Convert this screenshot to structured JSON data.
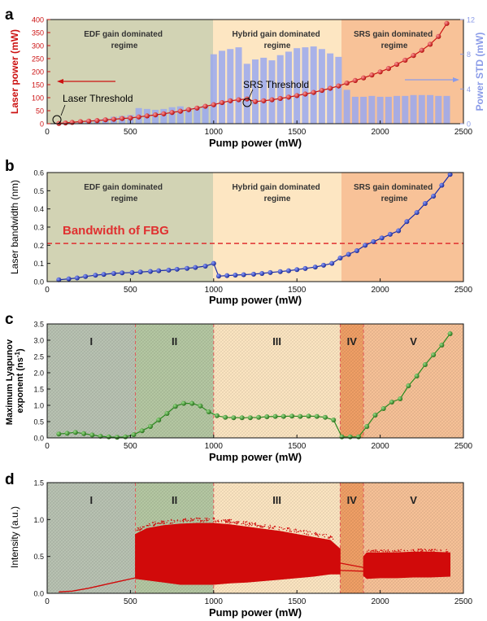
{
  "colors": {
    "edf_region": "#d2d3b4",
    "hybrid_region": "#fde6c2",
    "srs_region": "#f8c298",
    "r1": "#b9c3b3",
    "r2": "#b5c8a3",
    "r3": "#fde6c2",
    "r4": "#f1a066",
    "r5": "#f8c298",
    "laser_power": "#cc1111",
    "std_bars": "#9aa8ee",
    "bandwidth": "#1a2aa8",
    "lyapunov": "#2a8a1e",
    "intensity": "#d10a0a",
    "fbg_line": "#e03030",
    "boundary": "#e05a5a",
    "axis": "#111111",
    "right_axis": "#8a9be8"
  },
  "panels": {
    "a": {
      "letter": "a",
      "regimes": [
        {
          "label": [
            "EDF gain dominated",
            "regime"
          ]
        },
        {
          "label": [
            "Hybrid gain dominated",
            "regime"
          ]
        },
        {
          "label": [
            "SRS gain dominated",
            "regime"
          ]
        }
      ],
      "annotations": {
        "laser_threshold": "Laser Threshold",
        "srs_threshold": "SRS Threshold"
      }
    },
    "b": {
      "letter": "b",
      "regimes": [
        {
          "label": [
            "EDF gain dominated",
            "regime"
          ]
        },
        {
          "label": [
            "Hybrid gain dominated",
            "regime"
          ]
        },
        {
          "label": [
            "SRS gain dominated",
            "regime"
          ]
        }
      ],
      "fbg_label": "Bandwidth of FBG"
    },
    "c": {
      "letter": "c",
      "regions": [
        "I",
        "II",
        "III",
        "IV",
        "V"
      ]
    },
    "d": {
      "letter": "d",
      "regions": [
        "I",
        "II",
        "III",
        "IV",
        "V"
      ]
    }
  },
  "chart_data": [
    {
      "panel": "a",
      "type": "line",
      "xlabel": "Pump power (mW)",
      "ylabel": "Laser power (mW)",
      "y2label": "Power STD (mW)",
      "xlim": [
        0,
        2500
      ],
      "ylim": [
        0,
        400
      ],
      "y2lim": [
        0,
        12
      ],
      "xticks": [
        0,
        500,
        1000,
        1500,
        2000,
        2500
      ],
      "yticks": [
        0,
        50,
        100,
        150,
        200,
        250,
        300,
        350,
        400
      ],
      "y2ticks": [
        0,
        4,
        8,
        12
      ],
      "regime_bounds": [
        0,
        1000,
        1760,
        2500
      ],
      "series": [
        {
          "kind": "line",
          "x": [
            70,
            110,
            150,
            200,
            250,
            300,
            350,
            400,
            450,
            500,
            550,
            600,
            650,
            700,
            750,
            800,
            850,
            900,
            950,
            1000,
            1050,
            1100,
            1150,
            1200,
            1250,
            1300,
            1350,
            1400,
            1450,
            1500,
            1550,
            1600,
            1650,
            1700,
            1750,
            1800,
            1850,
            1900,
            1950,
            2000,
            2050,
            2100,
            2150,
            2200,
            2250,
            2300,
            2350,
            2400
          ],
          "values": [
            1,
            3,
            5,
            8,
            10,
            12,
            15,
            17,
            20,
            22,
            26,
            30,
            34,
            38,
            43,
            48,
            54,
            60,
            67,
            73,
            81,
            88,
            92,
            95,
            85,
            88,
            92,
            97,
            102,
            108,
            114,
            120,
            128,
            136,
            145,
            156,
            166,
            176,
            187,
            199,
            212,
            228,
            244,
            262,
            282,
            305,
            335,
            385
          ]
        },
        {
          "kind": "bar",
          "axis": "right",
          "x": [
            70,
            110,
            150,
            200,
            250,
            300,
            350,
            400,
            450,
            500,
            550,
            600,
            650,
            700,
            750,
            800,
            850,
            900,
            950,
            1000,
            1050,
            1100,
            1150,
            1200,
            1250,
            1300,
            1350,
            1400,
            1450,
            1500,
            1550,
            1600,
            1650,
            1700,
            1750,
            1800,
            1850,
            1900,
            1950,
            2000,
            2050,
            2100,
            2150,
            2200,
            2250,
            2300,
            2350,
            2400
          ],
          "values": [
            0.05,
            0.1,
            0.15,
            0.2,
            0.4,
            0.5,
            0.6,
            0.8,
            0.9,
            1.0,
            1.8,
            1.7,
            1.6,
            1.7,
            1.9,
            2.0,
            1.8,
            1.9,
            2.1,
            8.0,
            8.4,
            8.6,
            8.8,
            6.9,
            7.4,
            7.6,
            7.3,
            7.9,
            8.3,
            8.7,
            8.8,
            8.9,
            8.6,
            8.1,
            7.7,
            3.9,
            3.1,
            3.1,
            3.2,
            3.1,
            3.1,
            3.2,
            3.2,
            3.3,
            3.3,
            3.3,
            3.2,
            3.2
          ]
        }
      ]
    },
    {
      "panel": "b",
      "type": "line",
      "xlabel": "Pump power (mW)",
      "ylabel": "Laser bandwidth (nm)",
      "xlim": [
        0,
        2500
      ],
      "ylim": [
        0,
        0.6
      ],
      "xticks": [
        0,
        500,
        1000,
        1500,
        2000,
        2500
      ],
      "yticks": [
        0.0,
        0.1,
        0.2,
        0.3,
        0.4,
        0.5,
        0.6
      ],
      "fbg_value": 0.21,
      "regime_bounds": [
        0,
        1000,
        1760,
        2500
      ],
      "x": [
        70,
        130,
        180,
        230,
        290,
        340,
        400,
        450,
        510,
        560,
        620,
        670,
        730,
        780,
        840,
        890,
        950,
        1000,
        1030,
        1080,
        1130,
        1180,
        1240,
        1290,
        1340,
        1400,
        1450,
        1500,
        1550,
        1610,
        1660,
        1710,
        1760,
        1810,
        1860,
        1910,
        1960,
        2010,
        2060,
        2110,
        2160,
        2220,
        2270,
        2320,
        2370,
        2420
      ],
      "values": [
        0.01,
        0.015,
        0.02,
        0.028,
        0.035,
        0.04,
        0.045,
        0.048,
        0.05,
        0.053,
        0.056,
        0.06,
        0.063,
        0.068,
        0.073,
        0.078,
        0.085,
        0.1,
        0.03,
        0.033,
        0.036,
        0.038,
        0.041,
        0.045,
        0.05,
        0.055,
        0.06,
        0.066,
        0.072,
        0.08,
        0.09,
        0.1,
        0.13,
        0.15,
        0.17,
        0.2,
        0.22,
        0.24,
        0.26,
        0.28,
        0.33,
        0.38,
        0.43,
        0.47,
        0.53,
        0.59
      ]
    },
    {
      "panel": "c",
      "type": "line",
      "xlabel": "Pump power (mW)",
      "ylabel": "Maximum Lyapunov exponent (ns⁻¹)",
      "xlim": [
        0,
        2500
      ],
      "ylim": [
        0,
        3.5
      ],
      "xticks": [
        0,
        500,
        1000,
        1500,
        2000,
        2500
      ],
      "yticks": [
        0.0,
        0.5,
        1.0,
        1.5,
        2.0,
        2.5,
        3.0,
        3.5
      ],
      "region_bounds": [
        0,
        530,
        1000,
        1760,
        1900,
        2500
      ],
      "x": [
        70,
        120,
        170,
        220,
        270,
        320,
        370,
        420,
        470,
        520,
        570,
        620,
        670,
        720,
        770,
        820,
        870,
        920,
        970,
        1020,
        1070,
        1120,
        1170,
        1220,
        1270,
        1320,
        1370,
        1420,
        1470,
        1520,
        1570,
        1620,
        1670,
        1720,
        1770,
        1820,
        1870,
        1920,
        1970,
        2020,
        2070,
        2120,
        2170,
        2220,
        2270,
        2320,
        2370,
        2420
      ],
      "values": [
        0.12,
        0.14,
        0.17,
        0.13,
        0.09,
        0.05,
        0.03,
        0.02,
        0.03,
        0.1,
        0.22,
        0.35,
        0.55,
        0.75,
        0.97,
        1.06,
        1.06,
        0.98,
        0.8,
        0.68,
        0.63,
        0.62,
        0.62,
        0.62,
        0.63,
        0.65,
        0.66,
        0.66,
        0.67,
        0.66,
        0.67,
        0.66,
        0.63,
        0.55,
        0.03,
        0.03,
        0.03,
        0.35,
        0.7,
        0.9,
        1.1,
        1.2,
        1.6,
        1.9,
        2.25,
        2.55,
        2.85,
        3.2
      ]
    },
    {
      "panel": "d",
      "type": "area",
      "xlabel": "Pump power (mW)",
      "ylabel": "Intensity (a.u.)",
      "xlim": [
        0,
        2500
      ],
      "ylim": [
        0,
        1.5
      ],
      "xticks": [
        0,
        500,
        1000,
        1500,
        2000,
        2500
      ],
      "yticks": [
        0.0,
        0.5,
        1.0,
        1.5
      ],
      "region_bounds": [
        0,
        530,
        1000,
        1760,
        1900,
        2500
      ],
      "cw_line": {
        "x": [
          70,
          150,
          250,
          350,
          450,
          530
        ],
        "values": [
          0.02,
          0.03,
          0.07,
          0.12,
          0.17,
          0.21
        ]
      },
      "envelope": {
        "x": [
          530,
          600,
          700,
          800,
          900,
          1000,
          1100,
          1200,
          1300,
          1400,
          1500,
          1600,
          1700,
          1760,
          1900,
          1920,
          2000,
          2100,
          2200,
          2300,
          2420
        ],
        "upper": [
          0.8,
          0.88,
          0.92,
          0.94,
          0.95,
          0.95,
          0.93,
          0.9,
          0.87,
          0.84,
          0.8,
          0.76,
          0.72,
          0.6,
          0.5,
          0.55,
          0.55,
          0.55,
          0.56,
          0.56,
          0.55
        ],
        "lower": [
          0.2,
          0.18,
          0.15,
          0.12,
          0.12,
          0.12,
          0.14,
          0.15,
          0.17,
          0.19,
          0.21,
          0.23,
          0.26,
          0.26,
          0.24,
          0.2,
          0.21,
          0.21,
          0.22,
          0.22,
          0.23
        ]
      },
      "bridge_lines": {
        "x": [
          1760,
          1900
        ],
        "upper": [
          0.41,
          0.35
        ],
        "lower": [
          0.31,
          0.3
        ]
      }
    }
  ]
}
